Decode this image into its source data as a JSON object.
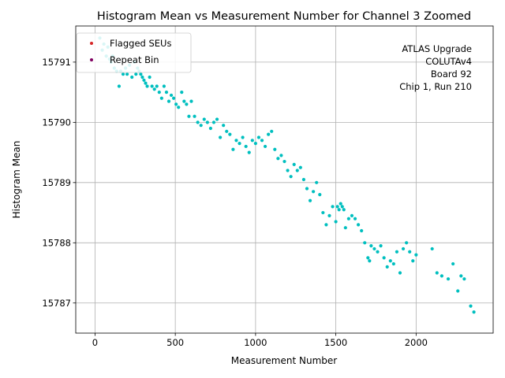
{
  "chart_data": {
    "type": "scatter",
    "title": "Histogram Mean vs Measurement Number for Channel 3 Zoomed",
    "xlabel": "Measurement Number",
    "ylabel": "Histogram Mean",
    "xlim": [
      -120,
      2480
    ],
    "ylim": [
      15786.5,
      15791.6
    ],
    "xticks": [
      0,
      500,
      1000,
      1500,
      2000
    ],
    "yticks": [
      15787,
      15788,
      15789,
      15790,
      15791
    ],
    "xtick_labels": [
      "0",
      "500",
      "1000",
      "1500",
      "2000"
    ],
    "ytick_labels": [
      "15787",
      "15788",
      "15789",
      "15790",
      "15791"
    ],
    "grid": true,
    "legend_position": "top-left",
    "legend": [
      {
        "label": "Flagged SEUs",
        "color": "#d62728"
      },
      {
        "label": "Repeat Bin",
        "color": "#800060"
      }
    ],
    "annotation": [
      "ATLAS Upgrade",
      "COLUTAv4",
      "Board 92",
      "Chip 1, Run 210"
    ],
    "series": [
      {
        "color": "#00bfbf",
        "x": [
          30,
          45,
          55,
          70,
          80,
          90,
          100,
          110,
          120,
          135,
          150,
          160,
          175,
          190,
          200,
          215,
          230,
          245,
          255,
          265,
          275,
          285,
          295,
          305,
          315,
          325,
          340,
          355,
          370,
          385,
          400,
          415,
          430,
          445,
          460,
          475,
          490,
          505,
          520,
          540,
          555,
          570,
          585,
          600,
          620,
          640,
          660,
          680,
          700,
          720,
          740,
          760,
          780,
          800,
          820,
          840,
          860,
          880,
          900,
          920,
          940,
          960,
          980,
          1000,
          1020,
          1040,
          1060,
          1080,
          1100,
          1120,
          1140,
          1160,
          1180,
          1200,
          1220,
          1240,
          1260,
          1280,
          1300,
          1320,
          1340,
          1360,
          1380,
          1400,
          1420,
          1440,
          1460,
          1480,
          1500,
          1510,
          1520,
          1530,
          1540,
          1550,
          1560,
          1580,
          1600,
          1620,
          1640,
          1660,
          1680,
          1700,
          1710,
          1720,
          1740,
          1760,
          1780,
          1800,
          1820,
          1840,
          1860,
          1880,
          1900,
          1920,
          1940,
          1960,
          1980,
          2000,
          2100,
          2130,
          2160,
          2200,
          2230,
          2260,
          2280,
          2300,
          2340,
          2360
        ],
        "y": [
          15791.4,
          15791.2,
          15791.3,
          15791.1,
          15791.25,
          15791.05,
          15791.0,
          15791.1,
          15790.9,
          15790.85,
          15790.6,
          15790.85,
          15790.8,
          15790.9,
          15790.8,
          15790.95,
          15790.75,
          15791.0,
          15790.8,
          15790.9,
          15790.85,
          15790.8,
          15790.75,
          15790.7,
          15790.65,
          15790.6,
          15790.75,
          15790.6,
          15790.55,
          15790.6,
          15790.5,
          15790.4,
          15790.6,
          15790.5,
          15790.35,
          15790.45,
          15790.4,
          15790.3,
          15790.25,
          15790.5,
          15790.35,
          15790.3,
          15790.1,
          15790.35,
          15790.1,
          15790.0,
          15789.95,
          15790.05,
          15790.0,
          15789.9,
          15790.0,
          15790.05,
          15789.75,
          15789.95,
          15789.85,
          15789.8,
          15789.55,
          15789.7,
          15789.65,
          15789.75,
          15789.6,
          15789.5,
          15789.7,
          15789.65,
          15789.75,
          15789.7,
          15789.6,
          15789.8,
          15789.85,
          15789.55,
          15789.4,
          15789.45,
          15789.35,
          15789.2,
          15789.1,
          15789.3,
          15789.2,
          15789.25,
          15789.05,
          15788.9,
          15788.7,
          15788.85,
          15789.0,
          15788.8,
          15788.5,
          15788.3,
          15788.45,
          15788.6,
          15788.35,
          15788.6,
          15788.55,
          15788.65,
          15788.6,
          15788.55,
          15788.25,
          15788.4,
          15788.45,
          15788.4,
          15788.3,
          15788.2,
          15788.0,
          15787.75,
          15787.7,
          15787.95,
          15787.9,
          15787.85,
          15787.95,
          15787.75,
          15787.6,
          15787.7,
          15787.65,
          15787.85,
          15787.5,
          15787.9,
          15788.0,
          15787.85,
          15787.7,
          15787.8,
          15787.9,
          15787.5,
          15787.45,
          15787.4,
          15787.65,
          15787.2,
          15787.45,
          15787.4,
          15786.95,
          15786.85
        ]
      }
    ]
  }
}
